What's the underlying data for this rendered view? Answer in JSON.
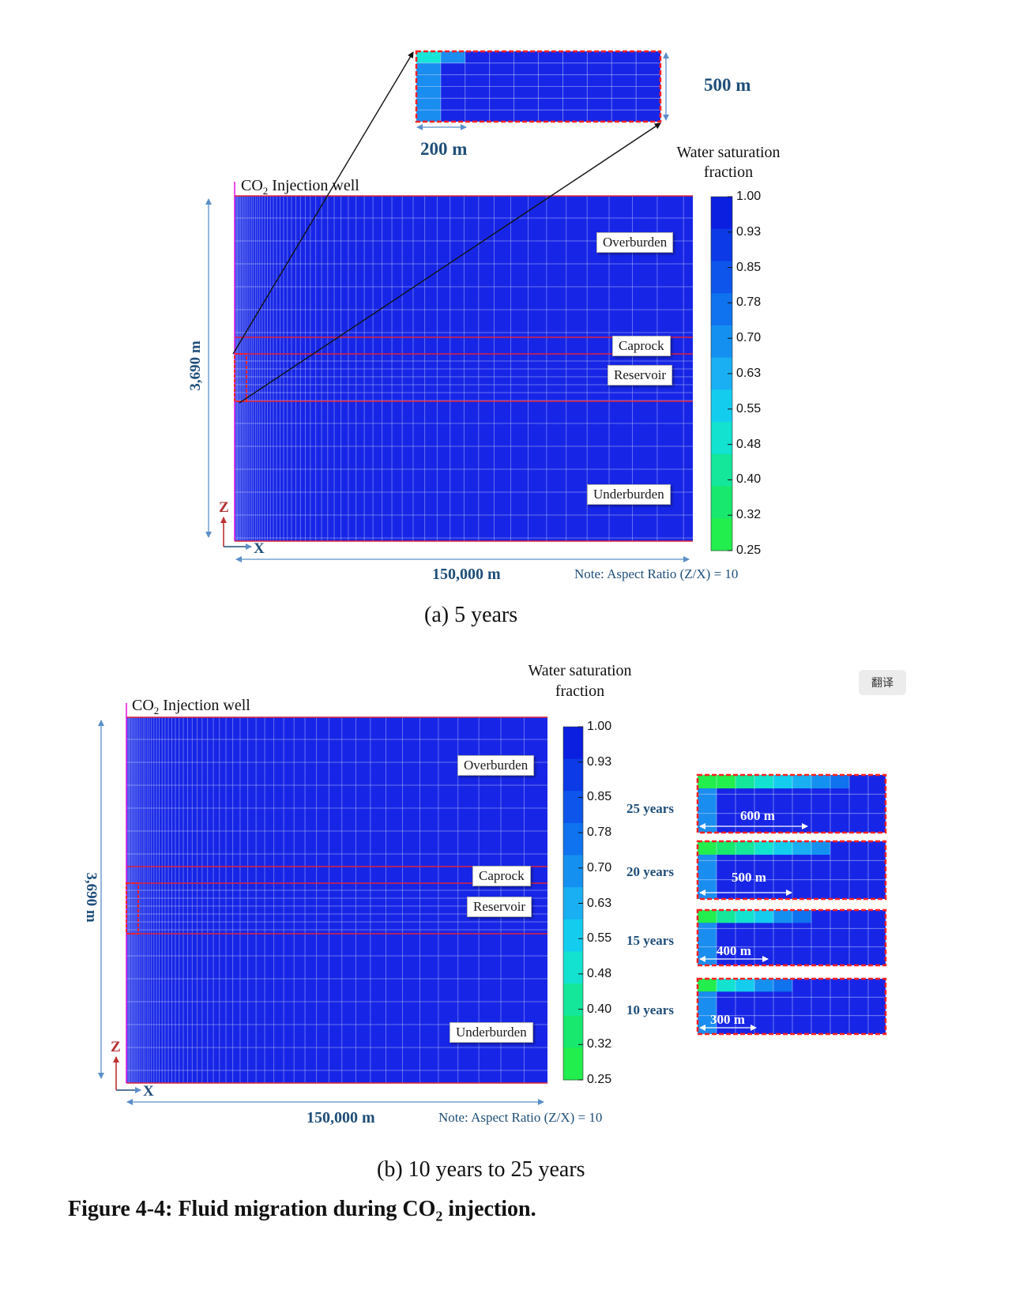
{
  "panel_a": {
    "injection_well_label": "Injection well",
    "co2_main": "CO",
    "co2_sub": "2",
    "zoom_width": "200 m",
    "zoom_height": "500 m",
    "depth": "3,690 m",
    "length": "150,000 m",
    "note": "Note: Aspect Ratio (Z/X) = 10",
    "layers": {
      "overburden": "Overburden",
      "caprock": "Caprock",
      "reservoir": "Reservoir",
      "underburden": "Underburden"
    },
    "axis_z": "Z",
    "axis_x": "X",
    "caption": "(a) 5 years"
  },
  "panel_b": {
    "injection_well_label": "Injection well",
    "co2_main": "CO",
    "co2_sub": "2",
    "depth": "3,690 m",
    "length": "150,000 m",
    "note": "Note: Aspect Ratio (Z/X) = 10",
    "layers": {
      "overburden": "Overburden",
      "caprock": "Caprock",
      "reservoir": "Reservoir",
      "underburden": "Underburden"
    },
    "axis_z": "Z",
    "axis_x": "X",
    "insets": [
      {
        "years": "25 years",
        "width": "600 m"
      },
      {
        "years": "20 years",
        "width": "500 m"
      },
      {
        "years": "15 years",
        "width": "400 m"
      },
      {
        "years": "10 years",
        "width": "300 m"
      }
    ],
    "caption": "(b) 10 years to 25 years"
  },
  "colorbar": {
    "title_line1": "Water saturation",
    "title_line2": "fraction",
    "ticks": [
      "1.00",
      "0.93",
      "0.85",
      "0.78",
      "0.70",
      "0.63",
      "0.55",
      "0.48",
      "0.40",
      "0.32",
      "0.25"
    ],
    "colors": [
      "#0a1fe0",
      "#0b3ae6",
      "#0d55eb",
      "#0f72ee",
      "#1491f0",
      "#1aaff2",
      "#14cdee",
      "#12e2cf",
      "#14e69a",
      "#18e96e",
      "#22ee4d"
    ]
  },
  "figure_title": {
    "prefix": "Figure 4-4: Fluid migration during CO",
    "sub": "2",
    "suffix": " injection."
  },
  "translate_button": "翻译"
}
